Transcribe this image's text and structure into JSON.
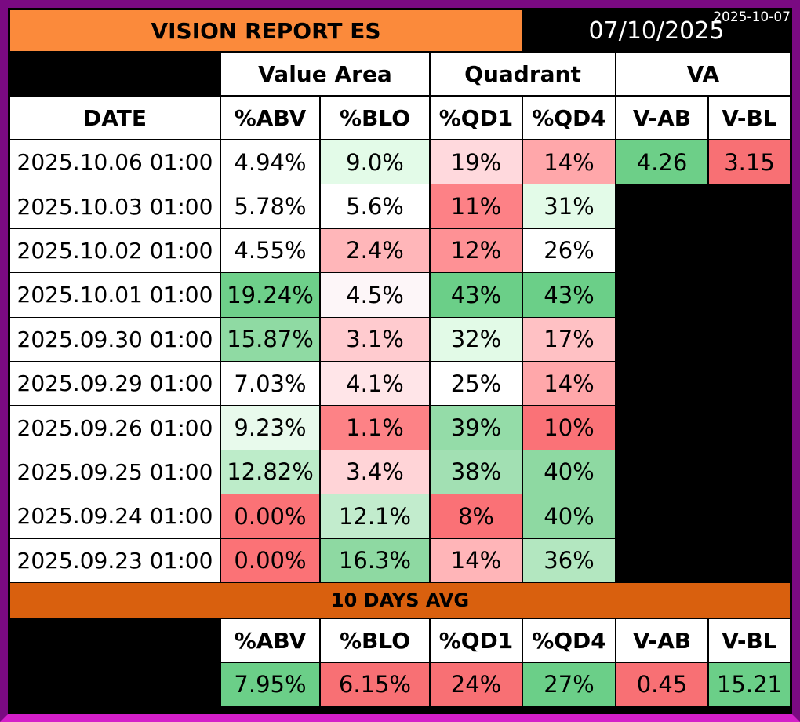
{
  "corner_date": "2025-10-07",
  "title": "VISION REPORT ES",
  "report_date": "07/10/2025",
  "groups": {
    "value_area": "Value Area",
    "quadrant": "Quadrant",
    "va": "VA"
  },
  "headers": {
    "date": "DATE",
    "abv": "%ABV",
    "blo": "%BLO",
    "qd1": "%QD1",
    "qd4": "%QD4",
    "vab": "V-AB",
    "vbl": "V-BL"
  },
  "rows": [
    {
      "date": "2025.10.06 01:00",
      "abv": "4.94%",
      "blo": "9.0%",
      "qd1": "19%",
      "qd4": "14%",
      "vab": "4.26",
      "vbl": "3.15"
    },
    {
      "date": "2025.10.03 01:00",
      "abv": "5.78%",
      "blo": "5.6%",
      "qd1": "11%",
      "qd4": "31%"
    },
    {
      "date": "2025.10.02 01:00",
      "abv": "4.55%",
      "blo": "2.4%",
      "qd1": "12%",
      "qd4": "26%"
    },
    {
      "date": "2025.10.01 01:00",
      "abv": "19.24%",
      "blo": "4.5%",
      "qd1": "43%",
      "qd4": "43%"
    },
    {
      "date": "2025.09.30 01:00",
      "abv": "15.87%",
      "blo": "3.1%",
      "qd1": "32%",
      "qd4": "17%"
    },
    {
      "date": "2025.09.29 01:00",
      "abv": "7.03%",
      "blo": "4.1%",
      "qd1": "25%",
      "qd4": "14%"
    },
    {
      "date": "2025.09.26 01:00",
      "abv": "9.23%",
      "blo": "1.1%",
      "qd1": "39%",
      "qd4": "10%"
    },
    {
      "date": "2025.09.25 01:00",
      "abv": "12.82%",
      "blo": "3.4%",
      "qd1": "38%",
      "qd4": "40%"
    },
    {
      "date": "2025.09.24 01:00",
      "abv": "0.00%",
      "blo": "12.1%",
      "qd1": "8%",
      "qd4": "40%"
    },
    {
      "date": "2025.09.23 01:00",
      "abv": "0.00%",
      "blo": "16.3%",
      "qd1": "14%",
      "qd4": "36%"
    }
  ],
  "cell_colors": [
    {
      "abv": "#ffffff",
      "blo": "#e3fbe8",
      "qd1": "#ffd9dd",
      "qd4": "#ffa7aa",
      "vab": "#6dcf88",
      "vbl": "#f87074"
    },
    {
      "abv": "#ffffff",
      "blo": "#ffffff",
      "qd1": "#fd8186",
      "qd4": "#e3fbe8"
    },
    {
      "abv": "#ffffff",
      "blo": "#ffb6b9",
      "qd1": "#fe9195",
      "qd4": "#ffffff"
    },
    {
      "abv": "#6ed08a",
      "blo": "#fdf6f8",
      "qd1": "#6bcf88",
      "qd4": "#6bcf88"
    },
    {
      "abv": "#8fdaa3",
      "blo": "#ffcbcf",
      "qd1": "#e2fae7",
      "qd4": "#ffc1c4"
    },
    {
      "abv": "#ffffff",
      "blo": "#ffe5e8",
      "qd1": "#ffffff",
      "qd4": "#ffa7aa"
    },
    {
      "abv": "#e8faec",
      "blo": "#fd8286",
      "qd1": "#94dca8",
      "qd4": "#fa7277"
    },
    {
      "abv": "#bdecc9",
      "blo": "#ffd4d7",
      "qd1": "#a2e0b3",
      "qd4": "#8ed9a2"
    },
    {
      "abv": "#fb7276",
      "blo": "#c2eccd",
      "qd1": "#fa7176",
      "qd4": "#8ed9a2"
    },
    {
      "abv": "#fb7276",
      "blo": "#8ed9a2",
      "qd1": "#ffb5b8",
      "qd4": "#b3e7c0"
    }
  ],
  "avg": {
    "title": "10 DAYS AVG",
    "headers": {
      "abv": "%ABV",
      "blo": "%BLO",
      "qd1": "%QD1",
      "qd4": "%QD4",
      "vab": "V-AB",
      "vbl": "V-BL"
    },
    "values": {
      "abv": "7.95%",
      "blo": "6.15%",
      "qd1": "24%",
      "qd4": "27%",
      "vab": "0.45",
      "vbl": "15.21"
    },
    "colors": {
      "abv": "#6bcf88",
      "blo": "#f87074",
      "qd1": "#f87074",
      "qd4": "#6bcf88",
      "vab": "#f87074",
      "vbl": "#6bcf88"
    }
  }
}
